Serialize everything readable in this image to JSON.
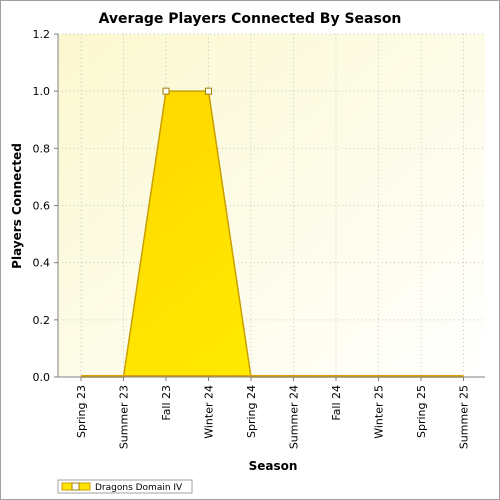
{
  "chart_data": {
    "type": "area",
    "title": "Average Players Connected By Season",
    "xlabel": "Season",
    "ylabel": "Players Connected",
    "categories": [
      "Spring 23",
      "Summer 23",
      "Fall 23",
      "Winter 24",
      "Spring 24",
      "Summer 24",
      "Fall 24",
      "Winter 25",
      "Spring 25",
      "Summer 25"
    ],
    "series": [
      {
        "name": "Dragons Domain IV",
        "values": [
          0.0,
          0.0,
          1.0,
          1.0,
          0.0,
          0.0,
          0.0,
          0.0,
          0.0,
          0.0
        ],
        "color": "#ffe400",
        "line_color": "#c8a000"
      }
    ],
    "ylim": [
      0.0,
      1.2
    ],
    "yticks": [
      "0.0",
      "0.2",
      "0.4",
      "0.6",
      "0.8",
      "1.0",
      "1.2"
    ],
    "grid": true,
    "legend_position": "bottom-left",
    "plot_background": "#fffff0"
  }
}
